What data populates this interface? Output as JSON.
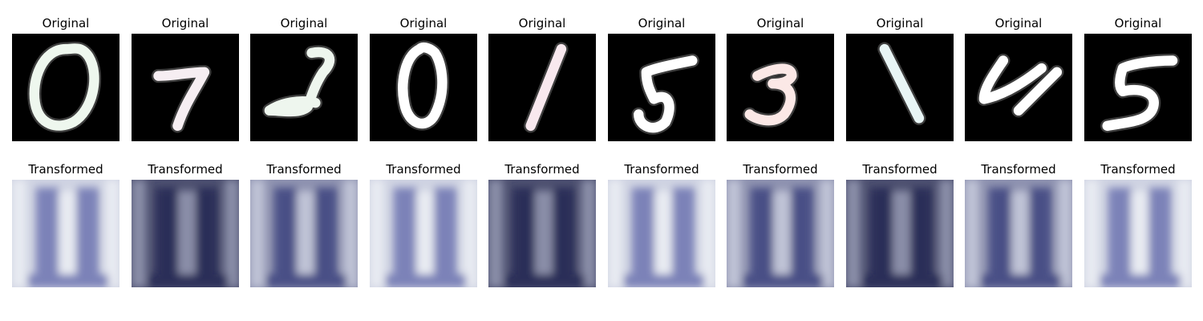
{
  "figure": {
    "columns": [
      {
        "digit": "0",
        "original_title": "Original",
        "transformed_title": "Transformed",
        "tint": "#eef7ee",
        "transformed_tone": "light"
      },
      {
        "digit": "7",
        "original_title": "Original",
        "transformed_title": "Transformed",
        "tint": "#f6eef2",
        "transformed_tone": "dark"
      },
      {
        "digit": "2",
        "original_title": "Original",
        "transformed_title": "Transformed",
        "tint": "#eef6ee",
        "transformed_tone": "mid"
      },
      {
        "digit": "0",
        "original_title": "Original",
        "transformed_title": "Transformed",
        "tint": "#ffffff",
        "transformed_tone": "light"
      },
      {
        "digit": "1",
        "original_title": "Original",
        "transformed_title": "Transformed",
        "tint": "#f8e8ee",
        "transformed_tone": "dark"
      },
      {
        "digit": "5",
        "original_title": "Original",
        "transformed_title": "Transformed",
        "tint": "#ffffff",
        "transformed_tone": "light"
      },
      {
        "digit": "3",
        "original_title": "Original",
        "transformed_title": "Transformed",
        "tint": "#fbe8e6",
        "transformed_tone": "mid"
      },
      {
        "digit": "1",
        "original_title": "Original",
        "transformed_title": "Transformed",
        "tint": "#e8f5f5",
        "transformed_tone": "dark"
      },
      {
        "digit": "4",
        "original_title": "Original",
        "transformed_title": "Transformed",
        "tint": "#ffffff",
        "transformed_tone": "mid"
      },
      {
        "digit": "5",
        "original_title": "Original",
        "transformed_title": "Transformed",
        "tint": "#ffffff",
        "transformed_tone": "light"
      }
    ]
  }
}
